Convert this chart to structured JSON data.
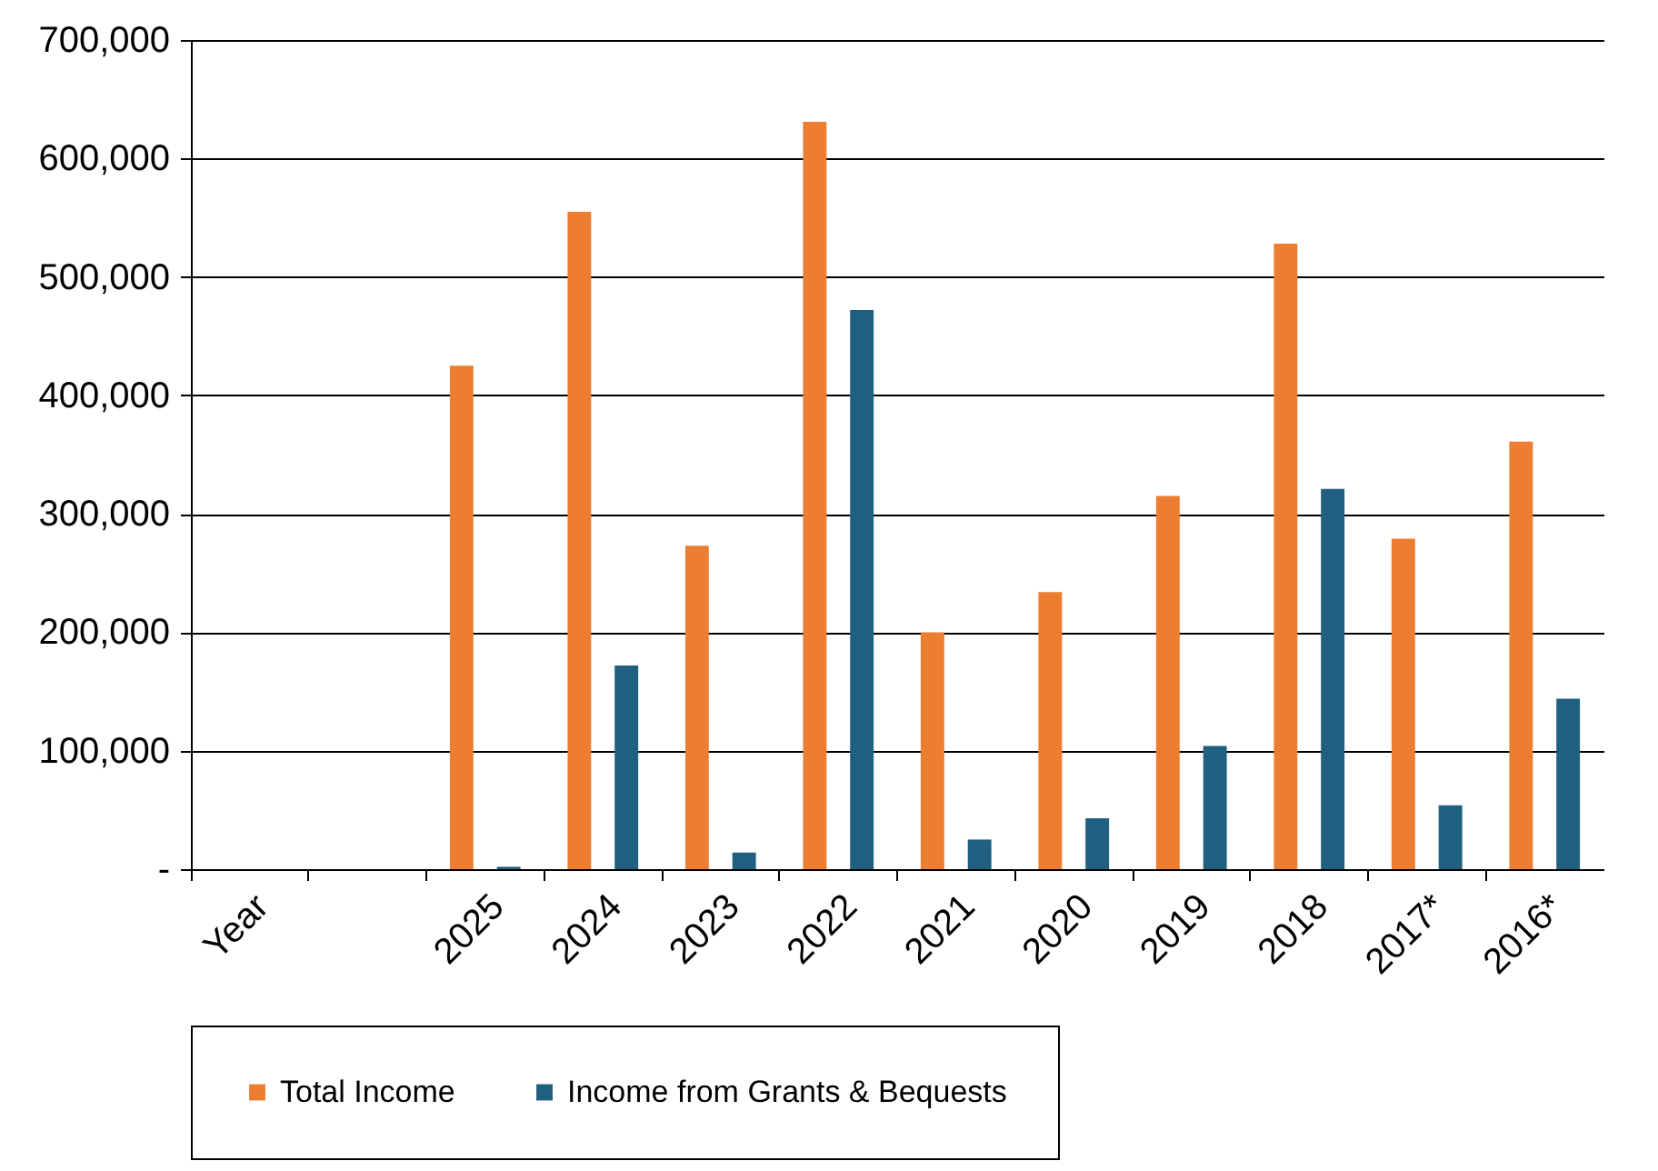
{
  "chart_data": {
    "type": "bar",
    "categories": [
      "Year",
      null,
      "2025",
      "2024",
      "2023",
      "2022",
      "2021",
      "2020",
      "2019",
      "2018",
      "2017*",
      "2016*"
    ],
    "series": [
      {
        "name": "Total Income",
        "color": "#ed7d31",
        "values": [
          null,
          null,
          425000,
          555000,
          273000,
          631000,
          200000,
          234000,
          315000,
          528000,
          279000,
          361000
        ]
      },
      {
        "name": "Income from Grants & Bequests",
        "color": "#1f5f7f",
        "values": [
          null,
          null,
          2000,
          172000,
          14000,
          472000,
          25000,
          43000,
          104000,
          321000,
          54000,
          144000
        ]
      }
    ],
    "ylim": [
      0,
      700000
    ],
    "yticks": [
      {
        "value": 0,
        "label": "-"
      },
      {
        "value": 100000,
        "label": "100,000"
      },
      {
        "value": 200000,
        "label": "200,000"
      },
      {
        "value": 300000,
        "label": "300,000"
      },
      {
        "value": 400000,
        "label": "400,000"
      },
      {
        "value": 500000,
        "label": "500,000"
      },
      {
        "value": 600000,
        "label": "600,000"
      },
      {
        "value": 700000,
        "label": "700,000"
      }
    ],
    "grid": "y",
    "legend": "bottom"
  }
}
